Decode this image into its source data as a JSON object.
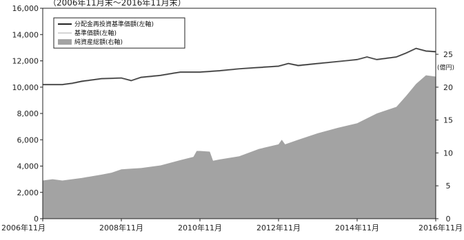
{
  "chart_data": {
    "type": "line",
    "subtitle": "（2006年11月末～2016年11月末）",
    "x_tick_labels": [
      "2006年11月",
      "2008年11月",
      "2010年11月",
      "2012年11月",
      "2014年11月",
      "2016年11月"
    ],
    "x_tick_positions": [
      0,
      24,
      48,
      72,
      96,
      120
    ],
    "x_range_months": [
      0,
      120
    ],
    "y_left": {
      "range": [
        0,
        16000
      ],
      "ticks": [
        0,
        2000,
        4000,
        6000,
        8000,
        10000,
        12000,
        14000,
        16000
      ],
      "tick_labels": [
        "0",
        "2,000",
        "4,000",
        "6,000",
        "8,000",
        "10,000",
        "12,000",
        "14,000",
        "16,000"
      ]
    },
    "y_right": {
      "unit": "(億円)",
      "range": [
        0,
        32
      ],
      "ticks": [
        0,
        5,
        10,
        15,
        20,
        25
      ],
      "tick_labels": [
        "0",
        "5",
        "10",
        "15",
        "20",
        "25"
      ]
    },
    "legend": [
      "分配金再投資基準価額(左軸)",
      "基準価額(左軸)",
      "純資産総額(右軸)"
    ],
    "series": [
      {
        "name": "分配金再投資基準価額(左軸)",
        "axis": "left",
        "style": "line",
        "color": "#222222",
        "x": [
          0,
          6,
          9,
          12,
          18,
          24,
          27,
          30,
          36,
          42,
          48,
          54,
          60,
          66,
          72,
          75,
          78,
          84,
          90,
          96,
          99,
          102,
          108,
          111,
          114,
          117,
          120
        ],
        "y": [
          10200,
          10200,
          10300,
          10450,
          10650,
          10700,
          10500,
          10750,
          10900,
          11150,
          11150,
          11250,
          11400,
          11500,
          11600,
          11800,
          11650,
          11800,
          11950,
          12100,
          12300,
          12100,
          12300,
          12600,
          12950,
          12750,
          12700
        ]
      },
      {
        "name": "基準価額(左軸)",
        "axis": "left",
        "style": "line",
        "color": "#aaaaaa",
        "x": [
          0,
          6,
          9,
          12,
          18,
          24,
          27,
          30,
          36,
          42,
          48,
          54,
          60,
          66,
          72,
          75,
          78,
          84,
          90,
          96,
          99,
          102,
          108,
          111,
          114,
          117,
          120
        ],
        "y": [
          10150,
          10150,
          10250,
          10400,
          10600,
          10650,
          10450,
          10700,
          10850,
          11100,
          11100,
          11200,
          11350,
          11450,
          11550,
          11750,
          11600,
          11750,
          11900,
          12050,
          12250,
          12050,
          12250,
          12550,
          12900,
          12700,
          12650
        ]
      },
      {
        "name": "純資産総額(右軸)",
        "axis": "right",
        "style": "area",
        "color": "#a3a3a3",
        "x": [
          0,
          3,
          6,
          9,
          12,
          18,
          21,
          24,
          27,
          30,
          36,
          42,
          46,
          47,
          48,
          51,
          52,
          54,
          60,
          66,
          72,
          73,
          74,
          78,
          84,
          90,
          96,
          102,
          108,
          111,
          114,
          117,
          120
        ],
        "y": [
          5.8,
          6.0,
          5.8,
          6.0,
          6.2,
          6.7,
          7.0,
          7.5,
          7.6,
          7.7,
          8.1,
          8.9,
          9.4,
          10.3,
          10.3,
          10.2,
          8.8,
          9.0,
          9.5,
          10.6,
          11.3,
          12.0,
          11.3,
          12.0,
          13.0,
          13.8,
          14.5,
          16.0,
          17.0,
          18.7,
          20.5,
          21.8,
          21.6
        ]
      }
    ]
  }
}
